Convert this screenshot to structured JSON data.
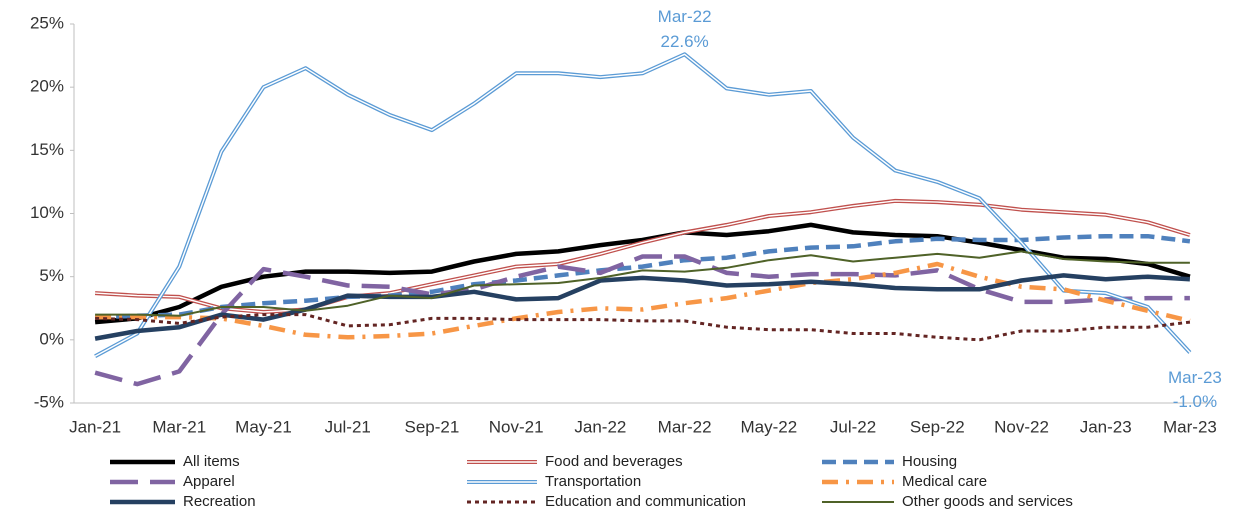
{
  "chart_data": {
    "type": "line",
    "categories": [
      "Jan-21",
      null,
      "Mar-21",
      null,
      "May-21",
      null,
      "Jul-21",
      null,
      "Sep-21",
      null,
      "Nov-21",
      null,
      "Jan-22",
      null,
      "Mar-22",
      null,
      "May-22",
      null,
      "Jul-22",
      null,
      "Sep-22",
      null,
      "Nov-22",
      null,
      "Jan-23",
      null,
      "Mar-23"
    ],
    "ylim": [
      -5,
      25
    ],
    "yticks": [
      {
        "value": -5,
        "label": "-5%"
      },
      {
        "value": 0,
        "label": "0%"
      },
      {
        "value": 5,
        "label": "5%"
      },
      {
        "value": 10,
        "label": "10%"
      },
      {
        "value": 15,
        "label": "15%"
      },
      {
        "value": 20,
        "label": "20%"
      },
      {
        "value": 25,
        "label": "25%"
      }
    ],
    "grid": false,
    "legend": "bottom",
    "series": [
      {
        "name": "All items",
        "color": "#000000",
        "style": "solid",
        "width": 4.5,
        "values": [
          1.4,
          1.7,
          2.6,
          4.2,
          5.0,
          5.4,
          5.4,
          5.3,
          5.4,
          6.2,
          6.8,
          7.0,
          7.5,
          7.9,
          8.5,
          8.3,
          8.6,
          9.1,
          8.5,
          8.3,
          8.2,
          7.7,
          7.1,
          6.5,
          6.4,
          6.0,
          5.0
        ]
      },
      {
        "name": "Food and beverages",
        "color": "#c0504d",
        "style": "double",
        "width": 4,
        "values": [
          3.7,
          3.5,
          3.4,
          2.5,
          2.2,
          2.4,
          3.4,
          3.7,
          4.4,
          5.1,
          5.8,
          6.0,
          6.8,
          7.7,
          8.5,
          9.1,
          9.8,
          10.1,
          10.6,
          11.0,
          10.9,
          10.7,
          10.3,
          10.1,
          9.9,
          9.3,
          8.3
        ]
      },
      {
        "name": "Housing",
        "color": "#4f81bd",
        "style": "dashed",
        "width": 4.5,
        "values": [
          1.8,
          1.9,
          2.0,
          2.6,
          2.9,
          3.1,
          3.4,
          3.5,
          3.8,
          4.4,
          4.7,
          5.1,
          5.5,
          5.8,
          6.3,
          6.5,
          7.0,
          7.3,
          7.4,
          7.8,
          8.0,
          7.9,
          7.9,
          8.1,
          8.2,
          8.2,
          7.8
        ]
      },
      {
        "name": "Apparel",
        "color": "#8064a2",
        "style": "longdash",
        "width": 4.5,
        "values": [
          -2.6,
          -3.5,
          -2.5,
          2.0,
          5.6,
          5.0,
          4.3,
          4.2,
          3.6,
          4.0,
          5.0,
          5.8,
          5.3,
          6.6,
          6.6,
          5.3,
          5.0,
          5.2,
          5.2,
          5.1,
          5.5,
          4.0,
          3.0,
          3.0,
          3.2,
          3.3,
          3.3
        ]
      },
      {
        "name": "Transportation",
        "color": "#5b9bd5",
        "style": "double",
        "width": 4,
        "values": [
          -1.3,
          0.5,
          5.8,
          14.9,
          20.0,
          21.5,
          19.4,
          17.8,
          16.6,
          18.7,
          21.1,
          21.1,
          20.8,
          21.1,
          22.6,
          19.9,
          19.4,
          19.7,
          16.0,
          13.4,
          12.5,
          11.2,
          7.7,
          3.9,
          3.7,
          2.6,
          -1.0
        ],
        "annotations": [
          {
            "x": "Mar-22",
            "label": "22.6%"
          },
          {
            "x": "Mar-23",
            "label": "-1.0%"
          }
        ]
      },
      {
        "name": "Medical care",
        "color": "#f79646",
        "style": "dotdash",
        "width": 4.5,
        "values": [
          1.8,
          1.8,
          1.8,
          1.7,
          1.1,
          0.4,
          0.2,
          0.3,
          0.5,
          1.1,
          1.7,
          2.2,
          2.5,
          2.4,
          2.9,
          3.3,
          3.9,
          4.5,
          4.8,
          5.3,
          6.0,
          5.0,
          4.2,
          4.0,
          3.1,
          2.3,
          1.5
        ]
      },
      {
        "name": "Recreation",
        "color": "#254061",
        "style": "solid",
        "width": 4.5,
        "values": [
          0.1,
          0.7,
          1.0,
          2.0,
          1.6,
          2.4,
          3.5,
          3.4,
          3.4,
          3.8,
          3.2,
          3.3,
          4.7,
          4.9,
          4.7,
          4.3,
          4.4,
          4.6,
          4.4,
          4.1,
          4.0,
          4.0,
          4.7,
          5.1,
          4.8,
          5.0,
          4.8
        ]
      },
      {
        "name": "Education and communication",
        "color": "#632523",
        "style": "dotted",
        "width": 3,
        "values": [
          1.7,
          1.6,
          1.3,
          1.8,
          2.0,
          2.0,
          1.1,
          1.2,
          1.7,
          1.7,
          1.6,
          1.6,
          1.6,
          1.5,
          1.5,
          1.0,
          0.8,
          0.8,
          0.5,
          0.5,
          0.2,
          0.0,
          0.7,
          0.7,
          1.0,
          1.0,
          1.4
        ]
      },
      {
        "name": "Other goods and services",
        "color": "#4f6228",
        "style": "solid",
        "width": 2,
        "values": [
          2.0,
          2.0,
          1.9,
          2.6,
          2.6,
          2.3,
          2.7,
          3.5,
          3.3,
          4.3,
          4.4,
          4.5,
          4.9,
          5.5,
          5.4,
          5.7,
          6.3,
          6.7,
          6.2,
          6.5,
          6.8,
          6.5,
          7.0,
          6.4,
          6.2,
          6.1,
          6.1
        ]
      }
    ]
  }
}
